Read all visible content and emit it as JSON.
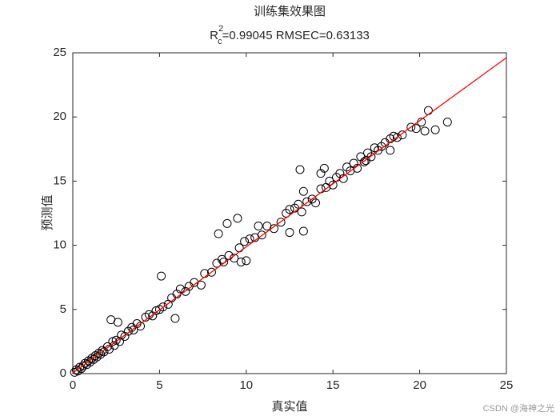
{
  "chart_data": {
    "type": "scatter",
    "title": "训练集效果图",
    "subtitle": {
      "base": "R",
      "sub": "c",
      "sup": "2",
      "rest": "=0.99045  RMSEC=0.63133"
    },
    "x_label": "真实值",
    "y_label": "预测值",
    "watermark": "CSDN @海神之光",
    "xlim": [
      0,
      25
    ],
    "ylim": [
      0,
      25
    ],
    "xticks": [
      0,
      5,
      10,
      15,
      20,
      25
    ],
    "yticks": [
      0,
      5,
      10,
      15,
      20,
      25
    ],
    "series": [
      {
        "color": "#000000",
        "x": [
          0.1,
          0.2,
          0.3,
          0.4,
          0.5,
          0.6,
          0.7,
          0.8,
          0.9,
          1.0,
          1.1,
          1.2,
          1.3,
          1.4,
          1.5,
          1.6,
          1.7,
          1.8,
          2.0,
          2.1,
          2.3,
          2.4,
          2.5,
          2.7,
          2.8,
          3.0,
          3.2,
          3.4,
          3.5,
          3.7,
          3.9,
          4.2,
          4.4,
          4.6,
          4.8,
          5.0,
          5.2,
          5.5,
          5.7,
          6.0,
          6.2,
          6.5,
          6.7,
          7.0,
          7.4,
          7.6,
          8.0,
          8.3,
          8.6,
          9.0,
          9.3,
          9.6,
          9.9,
          10.2,
          10.5,
          10.7,
          10.9,
          11.2,
          11.6,
          12.0,
          12.3,
          12.5,
          12.8,
          13.0,
          13.2,
          13.5,
          13.8,
          14.0,
          14.3,
          14.6,
          14.8,
          15.0,
          15.2,
          15.4,
          15.6,
          15.8,
          16.0,
          16.2,
          16.4,
          16.6,
          16.8,
          17.0,
          17.2,
          17.4,
          17.6,
          17.8,
          18.0,
          18.3,
          18.5,
          18.7,
          19.0,
          19.5,
          20.1,
          5.1,
          8.4,
          8.9,
          9.5,
          13.1,
          13.3,
          12.5,
          5.9,
          2.2,
          2.6,
          9.7,
          8.7,
          10.0,
          20.5,
          21.6,
          20.9,
          20.3,
          19.8,
          18.3,
          14.5,
          14.3,
          13.3,
          16.9
        ],
        "values": [
          0.1,
          0.3,
          0.2,
          0.5,
          0.4,
          0.6,
          0.8,
          0.7,
          1.0,
          0.9,
          1.2,
          1.1,
          1.4,
          1.3,
          1.6,
          1.5,
          1.8,
          1.7,
          2.1,
          1.9,
          2.5,
          2.2,
          2.6,
          2.5,
          3.0,
          2.9,
          3.3,
          3.6,
          3.4,
          3.9,
          3.7,
          4.4,
          4.6,
          4.5,
          4.9,
          5.0,
          5.2,
          5.4,
          5.9,
          6.2,
          6.6,
          6.4,
          6.8,
          7.1,
          6.9,
          7.8,
          7.9,
          8.6,
          8.9,
          9.2,
          9.0,
          9.8,
          10.3,
          10.5,
          10.6,
          11.5,
          10.8,
          11.5,
          11.3,
          11.8,
          12.5,
          12.8,
          12.9,
          13.2,
          12.6,
          13.4,
          13.6,
          13.3,
          14.4,
          14.5,
          15.0,
          14.7,
          15.3,
          15.6,
          15.2,
          16.1,
          15.8,
          16.4,
          16.0,
          16.9,
          16.5,
          17.2,
          16.9,
          17.6,
          17.4,
          17.7,
          18.0,
          18.3,
          18.5,
          18.4,
          18.6,
          19.2,
          19.6,
          7.6,
          10.9,
          11.7,
          12.1,
          15.9,
          11.1,
          11.0,
          4.3,
          4.2,
          4.0,
          8.7,
          8.7,
          8.8,
          20.5,
          19.6,
          19.0,
          18.9,
          19.1,
          17.4,
          16.0,
          15.6,
          14.2,
          16.6
        ]
      }
    ],
    "fit_line": {
      "color": "#ff0000",
      "x": [
        0,
        25
      ],
      "values": [
        0.05,
        24.62
      ]
    }
  }
}
